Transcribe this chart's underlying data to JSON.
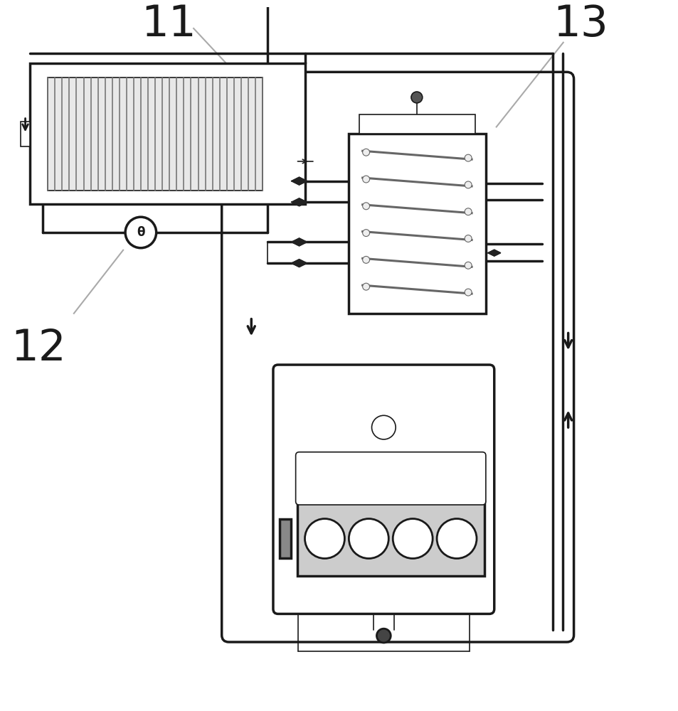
{
  "bg_color": "#ffffff",
  "line_color": "#1a1a1a",
  "label_11": "11",
  "label_12": "12",
  "label_13": "13",
  "lw": 2.0,
  "lw_thick": 2.5,
  "lw_thin": 1.2
}
